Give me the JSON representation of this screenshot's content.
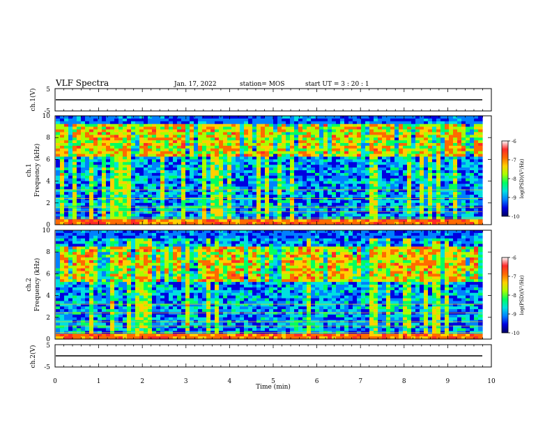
{
  "header": {
    "title": "VLF Spectra",
    "date": "Jan. 17, 2022",
    "station": "station= MOS",
    "start": "start  UT =   3 : 20 : 1"
  },
  "colorbar": {
    "label": "log(PSD)(V²/Hz)",
    "ticks": [
      "-6",
      "-7",
      "-8",
      "-9",
      "-10"
    ],
    "colors": [
      "#ffffff",
      "#ff2a2a",
      "#ff6a00",
      "#ffd000",
      "#a8ff00",
      "#00ff60",
      "#00e0e0",
      "#0080ff",
      "#0000e0",
      "#000060"
    ]
  },
  "chart_data": [
    {
      "type": "line",
      "ylabel": "ch.1(V)",
      "ylim": [
        -5,
        5
      ],
      "yticks": [
        "5",
        "-5"
      ],
      "xlim": [
        0,
        10
      ],
      "y_level": 0
    },
    {
      "type": "heatmap",
      "ylabel": "ch.1\nFrequency (kHz)",
      "ylim": [
        0,
        10
      ],
      "yticks": [
        "10",
        "8",
        "6",
        "4",
        "2",
        "0"
      ],
      "xlim": [
        0,
        10
      ],
      "color_range": [
        -10,
        -6
      ]
    },
    {
      "type": "heatmap",
      "ylabel": "ch.2\nFrequency (kHz)",
      "ylim": [
        0,
        10
      ],
      "yticks": [
        "10",
        "8",
        "6",
        "4",
        "2",
        "0"
      ],
      "xlim": [
        0,
        10
      ],
      "color_range": [
        -10,
        -6
      ]
    },
    {
      "type": "line",
      "ylabel": "ch.2(V)",
      "ylim": [
        -5,
        5
      ],
      "yticks": [
        "5",
        "-5"
      ],
      "xlim": [
        0,
        10
      ],
      "xticks": [
        "0",
        "1",
        "2",
        "3",
        "4",
        "5",
        "6",
        "7",
        "8",
        "9",
        "10"
      ],
      "xlabel": "Time (min)",
      "y_level": 0
    }
  ]
}
